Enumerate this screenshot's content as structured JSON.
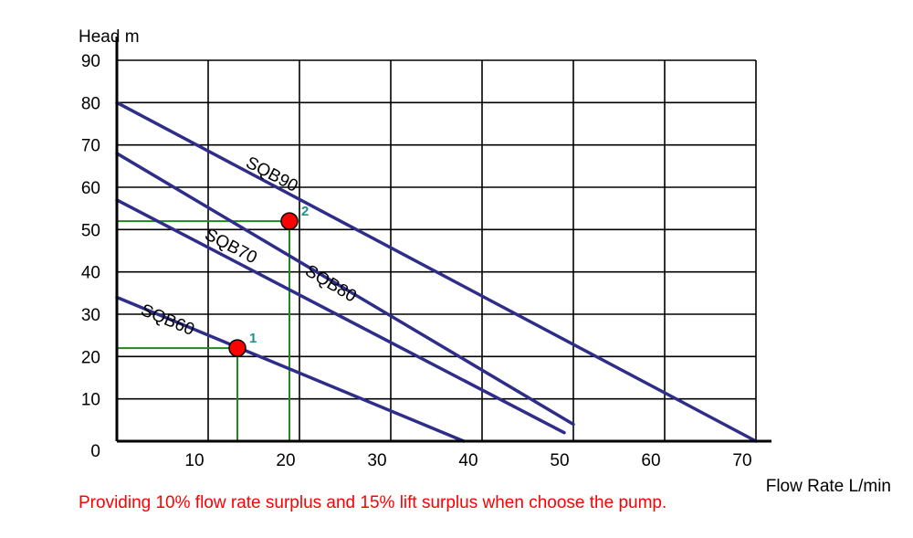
{
  "chart_data": {
    "type": "line",
    "ylabel": "Head m",
    "xlabel": "Flow Rate L/min",
    "xlim": [
      0,
      70
    ],
    "ylim": [
      0,
      90
    ],
    "x_ticks": [
      "10",
      "20",
      "30",
      "40",
      "50",
      "60",
      "70"
    ],
    "y_ticks": [
      "0",
      "10",
      "20",
      "30",
      "40",
      "50",
      "60",
      "70",
      "80",
      "90"
    ],
    "grid": true,
    "series": [
      {
        "name": "SQB60",
        "points": [
          [
            0,
            34
          ],
          [
            38,
            0
          ]
        ],
        "label_at": [
          2.5,
          30
        ]
      },
      {
        "name": "SQB70",
        "points": [
          [
            0,
            57
          ],
          [
            49,
            2
          ]
        ],
        "label_at": [
          9.5,
          48
        ]
      },
      {
        "name": "SQB80",
        "points": [
          [
            0,
            68
          ],
          [
            50,
            4
          ]
        ],
        "label_at": [
          20.5,
          39.5
        ]
      },
      {
        "name": "SQB90",
        "points": [
          [
            0,
            80
          ],
          [
            70,
            0
          ]
        ],
        "label_at": [
          14,
          65
        ]
      }
    ],
    "annotations": [
      {
        "label": "1",
        "x": 13.2,
        "y": 22
      },
      {
        "label": "2",
        "x": 18.9,
        "y": 52
      }
    ],
    "colors": {
      "series": "#2e2e8a",
      "guide": "#1e8a1e",
      "point": "#ff0000",
      "annotation_label": "#1a9090",
      "note": "#ff0000"
    }
  },
  "footnote": "Providing 10% flow rate surplus and 15% lift surplus when choose the pump."
}
